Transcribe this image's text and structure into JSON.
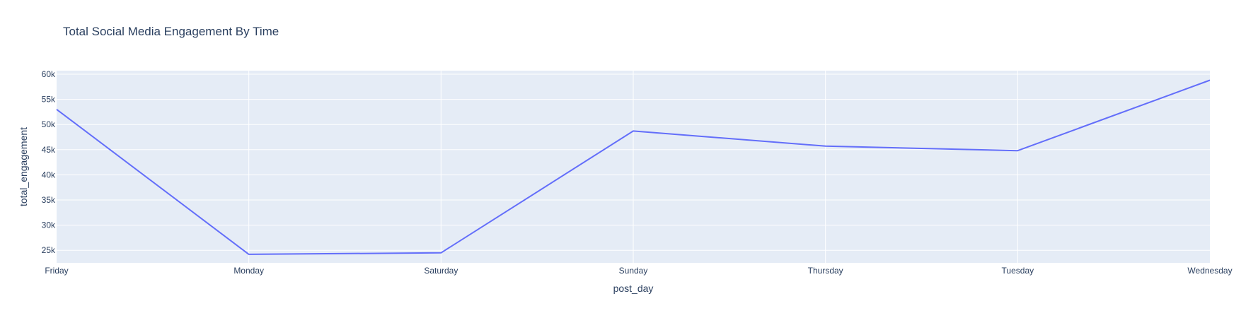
{
  "chart_data": {
    "type": "line",
    "title": "Total Social Media Engagement By Time",
    "xlabel": "post_day",
    "ylabel": "total_engagement",
    "categories": [
      "Friday",
      "Monday",
      "Saturday",
      "Sunday",
      "Thursday",
      "Tuesday",
      "Wednesday"
    ],
    "series": [
      {
        "values": [
          53000,
          24200,
          24500,
          48700,
          45700,
          44800,
          58800
        ]
      }
    ],
    "ylim": [
      22500,
      60700
    ],
    "yticks": [
      25000,
      30000,
      35000,
      40000,
      45000,
      50000,
      55000,
      60000
    ],
    "ytick_labels": [
      "25k",
      "30k",
      "35k",
      "40k",
      "45k",
      "50k",
      "55k",
      "60k"
    ],
    "grid": true,
    "colors": {
      "line": "#636efa",
      "plot_bg": "#e5ecf6",
      "grid": "#ffffff",
      "text": "#2a3f5f"
    }
  }
}
